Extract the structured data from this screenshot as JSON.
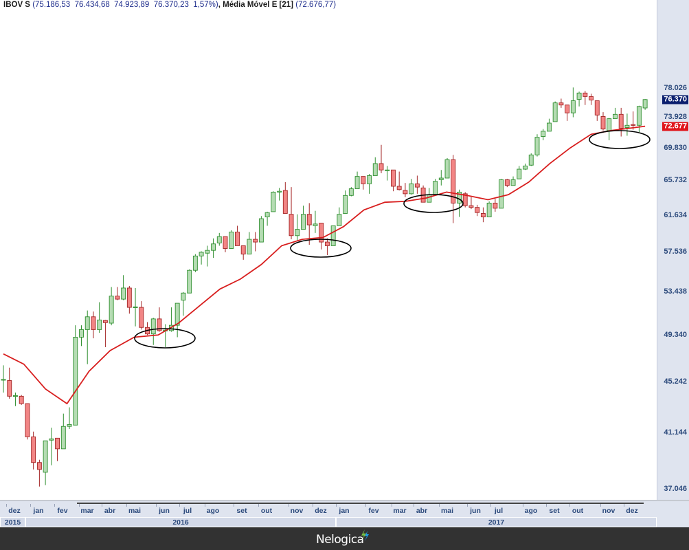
{
  "header": {
    "symbol": "IBOV S",
    "open": "75.186,53",
    "high": "76.434,68",
    "low": "74.923,89",
    "close": "76.370,23",
    "change": "1,57%",
    "indicator": "Média Móvel E [21]",
    "indicator_value": "72.676,77"
  },
  "colors": {
    "up_fill": "#b5dcb3",
    "up_line": "#2f8f2f",
    "down_fill": "#f28585",
    "down_line": "#a32424",
    "ma_line": "#d81e1e",
    "last_badge": "#0b1f6e",
    "ma_badge": "#e0161c",
    "annotation": "#000000"
  },
  "axis": {
    "price_labels": [
      "78.026",
      "73.928",
      "69.830",
      "65.732",
      "61.634",
      "57.536",
      "53.438",
      "49.340",
      "45.242",
      "41.144",
      "37.046"
    ],
    "last_price": "76.370",
    "ma_price": "72.677",
    "months": [
      "dez",
      "jan",
      "fev",
      "mar",
      "abr",
      "mai",
      "jun",
      "jul",
      "ago",
      "set",
      "out",
      "nov",
      "dez",
      "jan",
      "fev",
      "mar",
      "abr",
      "mai",
      "jun",
      "jul",
      "ago",
      "set",
      "out",
      "nov",
      "dez"
    ],
    "years": [
      "2015",
      "2016",
      "2017"
    ]
  },
  "footer": {
    "logo": "Nelogica"
  },
  "chart_data": {
    "type": "candlestick",
    "title": "IBOV S",
    "period": "weekly",
    "y_scale": "log",
    "ylim": [
      35.5,
      82
    ],
    "grid": false,
    "candles_ohlc": [
      [
        45.4,
        46.6,
        44.3,
        45.4
      ],
      [
        45.3,
        46.4,
        43.8,
        44.0
      ],
      [
        44.0,
        44.3,
        43.2,
        44.05
      ],
      [
        44.0,
        44.1,
        43.3,
        43.4
      ],
      [
        43.4,
        43.4,
        40.6,
        40.8
      ],
      [
        40.8,
        41.2,
        38.4,
        38.9
      ],
      [
        38.9,
        39.1,
        37.2,
        38.4
      ],
      [
        38.2,
        40.5,
        37.3,
        40.5
      ],
      [
        40.55,
        41.5,
        38.7,
        40.65
      ],
      [
        40.7,
        40.7,
        39.0,
        39.9
      ],
      [
        39.9,
        42.6,
        39.9,
        41.6
      ],
      [
        41.6,
        43.1,
        41.4,
        41.75
      ],
      [
        41.7,
        50.2,
        41.7,
        49.1
      ],
      [
        49.1,
        50.2,
        48.3,
        49.8
      ],
      [
        49.8,
        51.6,
        46.7,
        51.0
      ],
      [
        51.0,
        51.5,
        49.0,
        49.8
      ],
      [
        49.8,
        52.4,
        49.5,
        50.7
      ],
      [
        50.65,
        50.7,
        48.2,
        50.45
      ],
      [
        50.4,
        53.9,
        50.2,
        53.0
      ],
      [
        53.0,
        53.9,
        52.6,
        52.7
      ],
      [
        52.7,
        55.1,
        52.6,
        53.8
      ],
      [
        53.8,
        54.0,
        51.3,
        51.9
      ],
      [
        51.9,
        53.8,
        50.1,
        51.95
      ],
      [
        51.9,
        52.5,
        49.8,
        50.0
      ],
      [
        50.0,
        50.5,
        49.3,
        49.4
      ],
      [
        49.4,
        50.9,
        48.4,
        50.8
      ],
      [
        50.8,
        51.9,
        49.6,
        49.7
      ],
      [
        49.7,
        50.3,
        48.2,
        49.75
      ],
      [
        49.7,
        51.9,
        49.6,
        50.2
      ],
      [
        50.2,
        52.3,
        49.1,
        52.3
      ],
      [
        52.6,
        53.4,
        51.1,
        53.3
      ],
      [
        53.3,
        55.7,
        53.3,
        55.6
      ],
      [
        55.6,
        57.3,
        55.4,
        57.1
      ],
      [
        57.1,
        57.6,
        56.2,
        57.5
      ],
      [
        57.4,
        58.2,
        56.0,
        57.7
      ],
      [
        57.7,
        59.0,
        56.9,
        58.4
      ],
      [
        58.5,
        59.6,
        58.2,
        59.2
      ],
      [
        59.2,
        59.2,
        57.5,
        57.9
      ],
      [
        57.9,
        59.9,
        57.9,
        59.7
      ],
      [
        59.7,
        60.4,
        58.2,
        58.2
      ],
      [
        58.2,
        58.2,
        56.7,
        57.3
      ],
      [
        57.3,
        59.7,
        57.3,
        58.9
      ],
      [
        58.9,
        59.7,
        57.6,
        58.6
      ],
      [
        58.6,
        61.5,
        58.6,
        61.2
      ],
      [
        61.4,
        62.0,
        60.4,
        61.9
      ],
      [
        62.0,
        64.4,
        62.0,
        64.3
      ],
      [
        64.3,
        64.8,
        63.3,
        64.4
      ],
      [
        64.5,
        65.5,
        61.8,
        61.8
      ],
      [
        61.7,
        64.9,
        58.9,
        59.3
      ],
      [
        59.3,
        61.7,
        58.8,
        60.0
      ],
      [
        60.0,
        62.7,
        60.0,
        61.7
      ],
      [
        61.7,
        63.0,
        58.3,
        60.5
      ],
      [
        60.4,
        62.1,
        59.6,
        60.6
      ],
      [
        60.7,
        60.7,
        57.8,
        58.6
      ],
      [
        58.6,
        59.0,
        57.2,
        58.2
      ],
      [
        58.2,
        60.4,
        58.2,
        60.4
      ],
      [
        60.4,
        62.5,
        60.4,
        61.7
      ],
      [
        61.8,
        64.5,
        61.8,
        63.9
      ],
      [
        63.9,
        64.9,
        63.8,
        64.7
      ],
      [
        64.7,
        66.8,
        64.7,
        66.2
      ],
      [
        66.2,
        66.2,
        64.6,
        65.3
      ],
      [
        65.3,
        66.5,
        64.1,
        66.3
      ],
      [
        66.3,
        68.6,
        66.3,
        67.8
      ],
      [
        67.8,
        70.2,
        66.6,
        67.0
      ],
      [
        66.9,
        67.5,
        65.7,
        67.0
      ],
      [
        67.0,
        67.0,
        64.4,
        65.0
      ],
      [
        65.0,
        66.8,
        64.5,
        64.6
      ],
      [
        64.5,
        65.4,
        63.7,
        64.1
      ],
      [
        64.1,
        65.9,
        64.0,
        65.3
      ],
      [
        65.3,
        66.3,
        64.1,
        64.9
      ],
      [
        64.8,
        65.1,
        63.1,
        63.1
      ],
      [
        63.1,
        64.8,
        63.1,
        64.0
      ],
      [
        64.0,
        65.9,
        63.9,
        65.6
      ],
      [
        65.8,
        67.0,
        65.1,
        66.0
      ],
      [
        66.0,
        68.5,
        66.0,
        68.3
      ],
      [
        68.3,
        68.9,
        60.7,
        63.0
      ],
      [
        63.0,
        64.6,
        61.4,
        64.3
      ],
      [
        64.1,
        64.3,
        62.5,
        62.7
      ],
      [
        62.7,
        63.7,
        62.3,
        62.5
      ],
      [
        62.5,
        62.8,
        61.5,
        61.9
      ],
      [
        61.8,
        62.5,
        60.8,
        61.4
      ],
      [
        61.4,
        63.2,
        61.4,
        63.0
      ],
      [
        63.0,
        63.5,
        62.0,
        62.4
      ],
      [
        62.4,
        65.9,
        62.4,
        65.8
      ],
      [
        65.8,
        65.9,
        64.9,
        65.1
      ],
      [
        65.1,
        66.2,
        65.1,
        65.8
      ],
      [
        65.9,
        67.5,
        65.9,
        67.1
      ],
      [
        67.1,
        67.8,
        67.0,
        67.5
      ],
      [
        67.6,
        69.1,
        67.5,
        68.9
      ],
      [
        68.9,
        71.6,
        68.7,
        71.2
      ],
      [
        71.3,
        72.3,
        70.8,
        72.0
      ],
      [
        72.0,
        73.7,
        72.0,
        73.1
      ],
      [
        73.3,
        76.1,
        73.3,
        75.9
      ],
      [
        75.9,
        76.5,
        75.2,
        75.6
      ],
      [
        75.6,
        75.6,
        73.4,
        74.5
      ],
      [
        74.5,
        78.1,
        73.9,
        76.2
      ],
      [
        76.4,
        77.5,
        75.4,
        77.3
      ],
      [
        77.3,
        77.6,
        75.6,
        76.8
      ],
      [
        76.8,
        77.2,
        75.6,
        76.3
      ],
      [
        76.2,
        76.2,
        73.4,
        74.2
      ],
      [
        74.0,
        74.6,
        72.1,
        72.3
      ],
      [
        72.1,
        73.8,
        70.8,
        73.7
      ],
      [
        73.7,
        75.2,
        73.7,
        74.3
      ],
      [
        74.3,
        75.2,
        71.3,
        72.4
      ],
      [
        72.5,
        74.4,
        71.4,
        72.8
      ],
      [
        72.9,
        74.7,
        72.2,
        72.8
      ],
      [
        72.8,
        75.5,
        71.9,
        75.4
      ],
      [
        75.186,
        76.435,
        74.924,
        76.37
      ]
    ],
    "moving_average": {
      "name": "Média Móvel E [21]",
      "points_bar_value": [
        [
          0,
          47.6
        ],
        [
          3.4,
          46.7
        ],
        [
          7,
          44.6
        ],
        [
          10.6,
          43.4
        ],
        [
          14.3,
          46.1
        ],
        [
          17.8,
          47.9
        ],
        [
          21.8,
          49.1
        ],
        [
          25.8,
          49.3
        ],
        [
          29.2,
          50.4
        ],
        [
          32.6,
          52.0
        ],
        [
          36.1,
          53.7
        ],
        [
          39.5,
          54.7
        ],
        [
          43,
          56.2
        ],
        [
          46.4,
          58.2
        ],
        [
          49.8,
          58.9
        ],
        [
          53.3,
          59.1
        ],
        [
          56.7,
          60.3
        ],
        [
          60.1,
          62.2
        ],
        [
          63.6,
          63.1
        ],
        [
          67,
          63.2
        ],
        [
          70.5,
          63.6
        ],
        [
          73.9,
          64.3
        ],
        [
          77.3,
          63.9
        ],
        [
          80.8,
          63.4
        ],
        [
          84.2,
          64.0
        ],
        [
          87.6,
          65.5
        ],
        [
          91.1,
          67.8
        ],
        [
          94.5,
          69.8
        ],
        [
          98,
          71.6
        ],
        [
          101.4,
          72.1
        ],
        [
          107,
          72.677
        ]
      ]
    }
  }
}
